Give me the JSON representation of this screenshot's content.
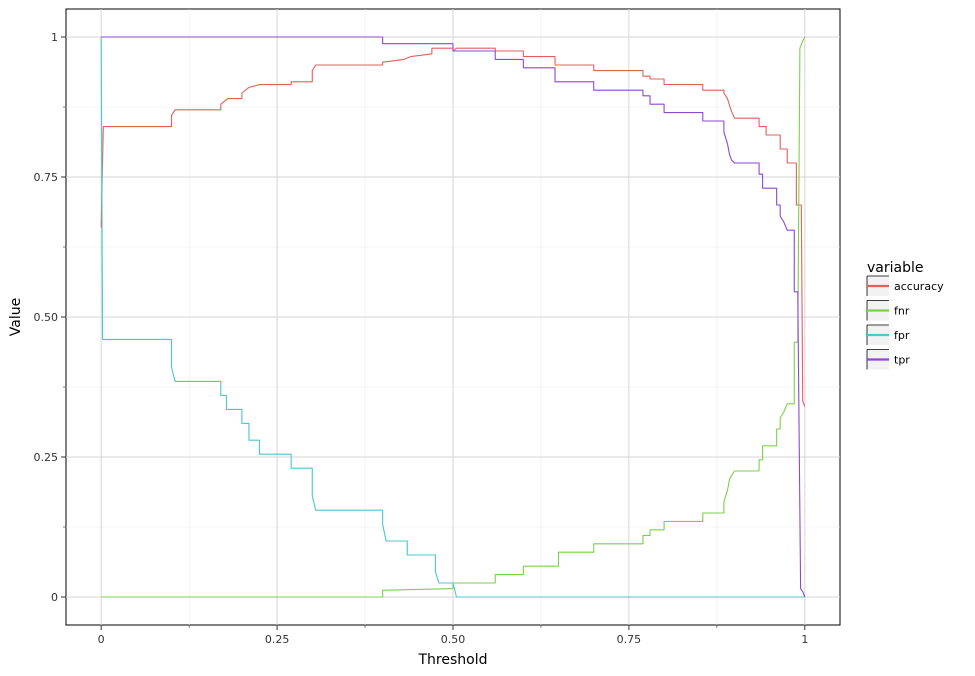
{
  "chart_data": {
    "type": "line",
    "xlabel": "Threshold",
    "ylabel": "Value",
    "xlim": [
      -0.05,
      1.05
    ],
    "ylim": [
      -0.05,
      1.05
    ],
    "x_ticks": [
      0,
      0.25,
      0.5,
      0.75,
      1
    ],
    "x_tick_labels": [
      "0",
      "0.25",
      "0.50",
      "0.75",
      "1"
    ],
    "y_ticks": [
      0,
      0.25,
      0.5,
      0.75,
      1
    ],
    "y_tick_labels": [
      "0",
      "0.25",
      "0.50",
      "0.75",
      "1"
    ],
    "grid": true,
    "legend": {
      "title": "variable",
      "position": "right"
    },
    "series": [
      {
        "name": "accuracy",
        "color": "#E06159",
        "points": [
          [
            0,
            0.66
          ],
          [
            0.003,
            0.84
          ],
          [
            0.1,
            0.84
          ],
          [
            0.1,
            0.86
          ],
          [
            0.105,
            0.87
          ],
          [
            0.17,
            0.87
          ],
          [
            0.17,
            0.88
          ],
          [
            0.18,
            0.89
          ],
          [
            0.2,
            0.89
          ],
          [
            0.2,
            0.9
          ],
          [
            0.21,
            0.91
          ],
          [
            0.225,
            0.915
          ],
          [
            0.27,
            0.915
          ],
          [
            0.27,
            0.92
          ],
          [
            0.3,
            0.92
          ],
          [
            0.3,
            0.94
          ],
          [
            0.305,
            0.95
          ],
          [
            0.4,
            0.95
          ],
          [
            0.4,
            0.955
          ],
          [
            0.43,
            0.96
          ],
          [
            0.44,
            0.965
          ],
          [
            0.47,
            0.97
          ],
          [
            0.47,
            0.98
          ],
          [
            0.5,
            0.98
          ],
          [
            0.5,
            0.975
          ],
          [
            0.505,
            0.98
          ],
          [
            0.56,
            0.98
          ],
          [
            0.56,
            0.975
          ],
          [
            0.6,
            0.975
          ],
          [
            0.6,
            0.965
          ],
          [
            0.645,
            0.965
          ],
          [
            0.645,
            0.95
          ],
          [
            0.7,
            0.95
          ],
          [
            0.7,
            0.94
          ],
          [
            0.77,
            0.94
          ],
          [
            0.77,
            0.93
          ],
          [
            0.78,
            0.93
          ],
          [
            0.78,
            0.925
          ],
          [
            0.8,
            0.925
          ],
          [
            0.8,
            0.915
          ],
          [
            0.855,
            0.915
          ],
          [
            0.855,
            0.905
          ],
          [
            0.885,
            0.905
          ],
          [
            0.885,
            0.9
          ],
          [
            0.89,
            0.89
          ],
          [
            0.895,
            0.87
          ],
          [
            0.9,
            0.855
          ],
          [
            0.935,
            0.855
          ],
          [
            0.935,
            0.84
          ],
          [
            0.945,
            0.84
          ],
          [
            0.945,
            0.825
          ],
          [
            0.965,
            0.825
          ],
          [
            0.965,
            0.8
          ],
          [
            0.975,
            0.8
          ],
          [
            0.975,
            0.775
          ],
          [
            0.988,
            0.775
          ],
          [
            0.988,
            0.7
          ],
          [
            0.995,
            0.7
          ],
          [
            0.997,
            0.35
          ],
          [
            1,
            0.34
          ]
        ]
      },
      {
        "name": "fnr",
        "color": "#7CD04D",
        "points": [
          [
            0,
            0
          ],
          [
            0.4,
            0
          ],
          [
            0.4,
            0.012
          ],
          [
            0.5,
            0.015
          ],
          [
            0.5,
            0.025
          ],
          [
            0.56,
            0.025
          ],
          [
            0.56,
            0.04
          ],
          [
            0.6,
            0.04
          ],
          [
            0.6,
            0.055
          ],
          [
            0.65,
            0.055
          ],
          [
            0.65,
            0.08
          ],
          [
            0.7,
            0.08
          ],
          [
            0.7,
            0.095
          ],
          [
            0.77,
            0.095
          ],
          [
            0.77,
            0.11
          ],
          [
            0.78,
            0.11
          ],
          [
            0.78,
            0.12
          ],
          [
            0.8,
            0.12
          ],
          [
            0.8,
            0.135
          ],
          [
            0.855,
            0.135
          ],
          [
            0.855,
            0.15
          ],
          [
            0.885,
            0.15
          ],
          [
            0.885,
            0.17
          ],
          [
            0.89,
            0.19
          ],
          [
            0.893,
            0.21
          ],
          [
            0.895,
            0.215
          ],
          [
            0.9,
            0.225
          ],
          [
            0.935,
            0.225
          ],
          [
            0.935,
            0.245
          ],
          [
            0.94,
            0.245
          ],
          [
            0.94,
            0.27
          ],
          [
            0.96,
            0.27
          ],
          [
            0.96,
            0.3
          ],
          [
            0.965,
            0.3
          ],
          [
            0.965,
            0.32
          ],
          [
            0.97,
            0.33
          ],
          [
            0.975,
            0.345
          ],
          [
            0.985,
            0.345
          ],
          [
            0.985,
            0.455
          ],
          [
            0.99,
            0.455
          ],
          [
            0.993,
            0.98
          ],
          [
            0.996,
            0.99
          ],
          [
            1,
            1
          ]
        ]
      },
      {
        "name": "fpr",
        "color": "#4CC6CE",
        "points": [
          [
            0,
            1
          ],
          [
            0.002,
            0.46
          ],
          [
            0.1,
            0.46
          ],
          [
            0.1,
            0.41
          ],
          [
            0.105,
            0.385
          ],
          [
            0.17,
            0.385
          ],
          [
            0.17,
            0.36
          ],
          [
            0.178,
            0.36
          ],
          [
            0.178,
            0.335
          ],
          [
            0.2,
            0.335
          ],
          [
            0.2,
            0.31
          ],
          [
            0.21,
            0.31
          ],
          [
            0.21,
            0.28
          ],
          [
            0.225,
            0.28
          ],
          [
            0.225,
            0.255
          ],
          [
            0.27,
            0.255
          ],
          [
            0.27,
            0.23
          ],
          [
            0.3,
            0.23
          ],
          [
            0.3,
            0.18
          ],
          [
            0.305,
            0.155
          ],
          [
            0.4,
            0.155
          ],
          [
            0.4,
            0.13
          ],
          [
            0.405,
            0.1
          ],
          [
            0.435,
            0.1
          ],
          [
            0.435,
            0.075
          ],
          [
            0.475,
            0.075
          ],
          [
            0.475,
            0.045
          ],
          [
            0.48,
            0.025
          ],
          [
            0.5,
            0.025
          ],
          [
            0.505,
            0
          ],
          [
            1,
            0
          ]
        ]
      },
      {
        "name": "tpr",
        "color": "#8F47D4",
        "points": [
          [
            0,
            1
          ],
          [
            0.4,
            1
          ],
          [
            0.4,
            0.988
          ],
          [
            0.5,
            0.988
          ],
          [
            0.5,
            0.975
          ],
          [
            0.56,
            0.975
          ],
          [
            0.56,
            0.96
          ],
          [
            0.6,
            0.96
          ],
          [
            0.6,
            0.945
          ],
          [
            0.645,
            0.945
          ],
          [
            0.645,
            0.92
          ],
          [
            0.7,
            0.92
          ],
          [
            0.7,
            0.905
          ],
          [
            0.77,
            0.905
          ],
          [
            0.77,
            0.895
          ],
          [
            0.78,
            0.895
          ],
          [
            0.78,
            0.88
          ],
          [
            0.8,
            0.88
          ],
          [
            0.8,
            0.865
          ],
          [
            0.855,
            0.865
          ],
          [
            0.855,
            0.85
          ],
          [
            0.885,
            0.85
          ],
          [
            0.885,
            0.83
          ],
          [
            0.89,
            0.81
          ],
          [
            0.893,
            0.79
          ],
          [
            0.896,
            0.78
          ],
          [
            0.9,
            0.775
          ],
          [
            0.935,
            0.775
          ],
          [
            0.935,
            0.755
          ],
          [
            0.94,
            0.755
          ],
          [
            0.94,
            0.73
          ],
          [
            0.96,
            0.73
          ],
          [
            0.96,
            0.7
          ],
          [
            0.965,
            0.7
          ],
          [
            0.965,
            0.68
          ],
          [
            0.97,
            0.67
          ],
          [
            0.975,
            0.655
          ],
          [
            0.985,
            0.655
          ],
          [
            0.985,
            0.545
          ],
          [
            0.99,
            0.545
          ],
          [
            0.994,
            0.015
          ],
          [
            0.997,
            0.01
          ],
          [
            1,
            0
          ]
        ]
      }
    ]
  }
}
